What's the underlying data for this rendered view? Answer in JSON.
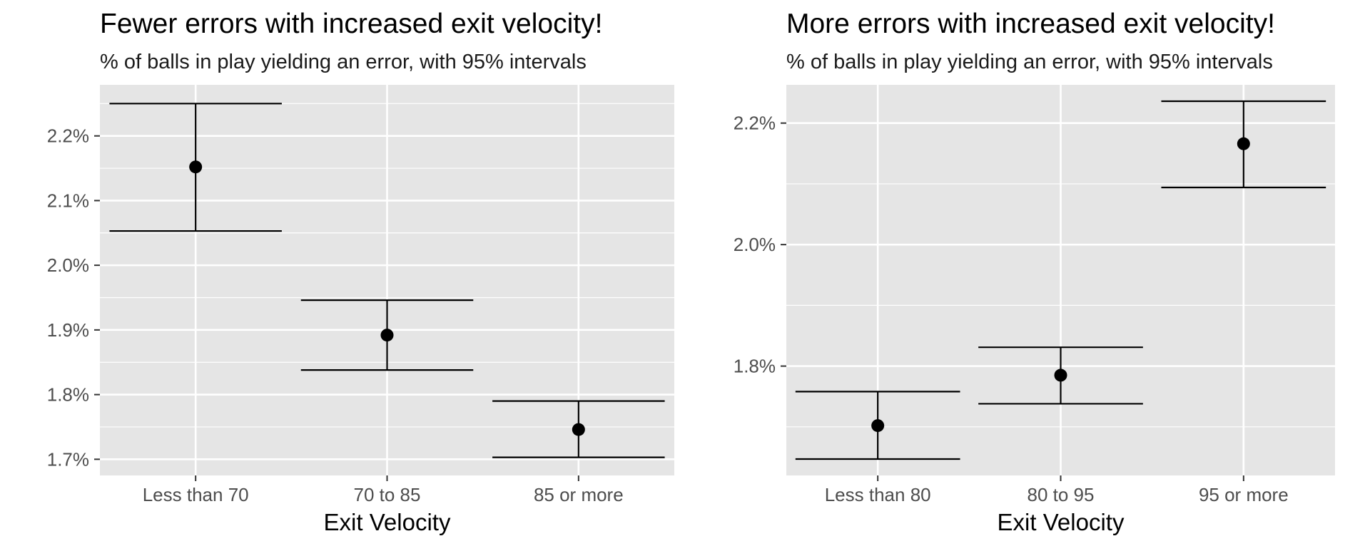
{
  "chart_data": [
    {
      "type": "errorbar",
      "title": "Fewer errors with increased exit velocity!",
      "subtitle": "% of balls in play yielding an error, with 95% intervals",
      "xlabel": "Exit Velocity",
      "ylabel": "",
      "categories": [
        "Less than 70",
        "70 to 85",
        "85 or more"
      ],
      "values": [
        2.152,
        1.892,
        1.746
      ],
      "lower": [
        2.053,
        1.838,
        1.703
      ],
      "upper": [
        2.25,
        1.946,
        1.79
      ],
      "yticks": [
        1.7,
        1.8,
        1.9,
        2.0,
        2.1,
        2.2
      ],
      "ytick_labels": [
        "1.7%",
        "1.8%",
        "1.9%",
        "2.0%",
        "2.1%",
        "2.2%"
      ],
      "ylim": [
        1.675,
        2.279
      ],
      "grid": true,
      "colors": {
        "panel": "#e5e5e5",
        "grid": "#ffffff",
        "mark": "#000000"
      }
    },
    {
      "type": "errorbar",
      "title": "More errors with increased exit velocity!",
      "subtitle": "% of balls in play yielding an error, with 95% intervals",
      "xlabel": "Exit Velocity",
      "ylabel": "",
      "categories": [
        "Less than 80",
        "80 to 95",
        "95 or more"
      ],
      "values": [
        1.702,
        1.785,
        2.166
      ],
      "lower": [
        1.647,
        1.738,
        2.094
      ],
      "upper": [
        1.758,
        1.831,
        2.236
      ],
      "yticks": [
        1.8,
        2.0,
        2.2
      ],
      "ytick_labels": [
        "1.8%",
        "2.0%",
        "2.2%"
      ],
      "ylim": [
        1.62,
        2.263
      ],
      "grid": true,
      "colors": {
        "panel": "#e5e5e5",
        "grid": "#ffffff",
        "mark": "#000000"
      }
    }
  ]
}
